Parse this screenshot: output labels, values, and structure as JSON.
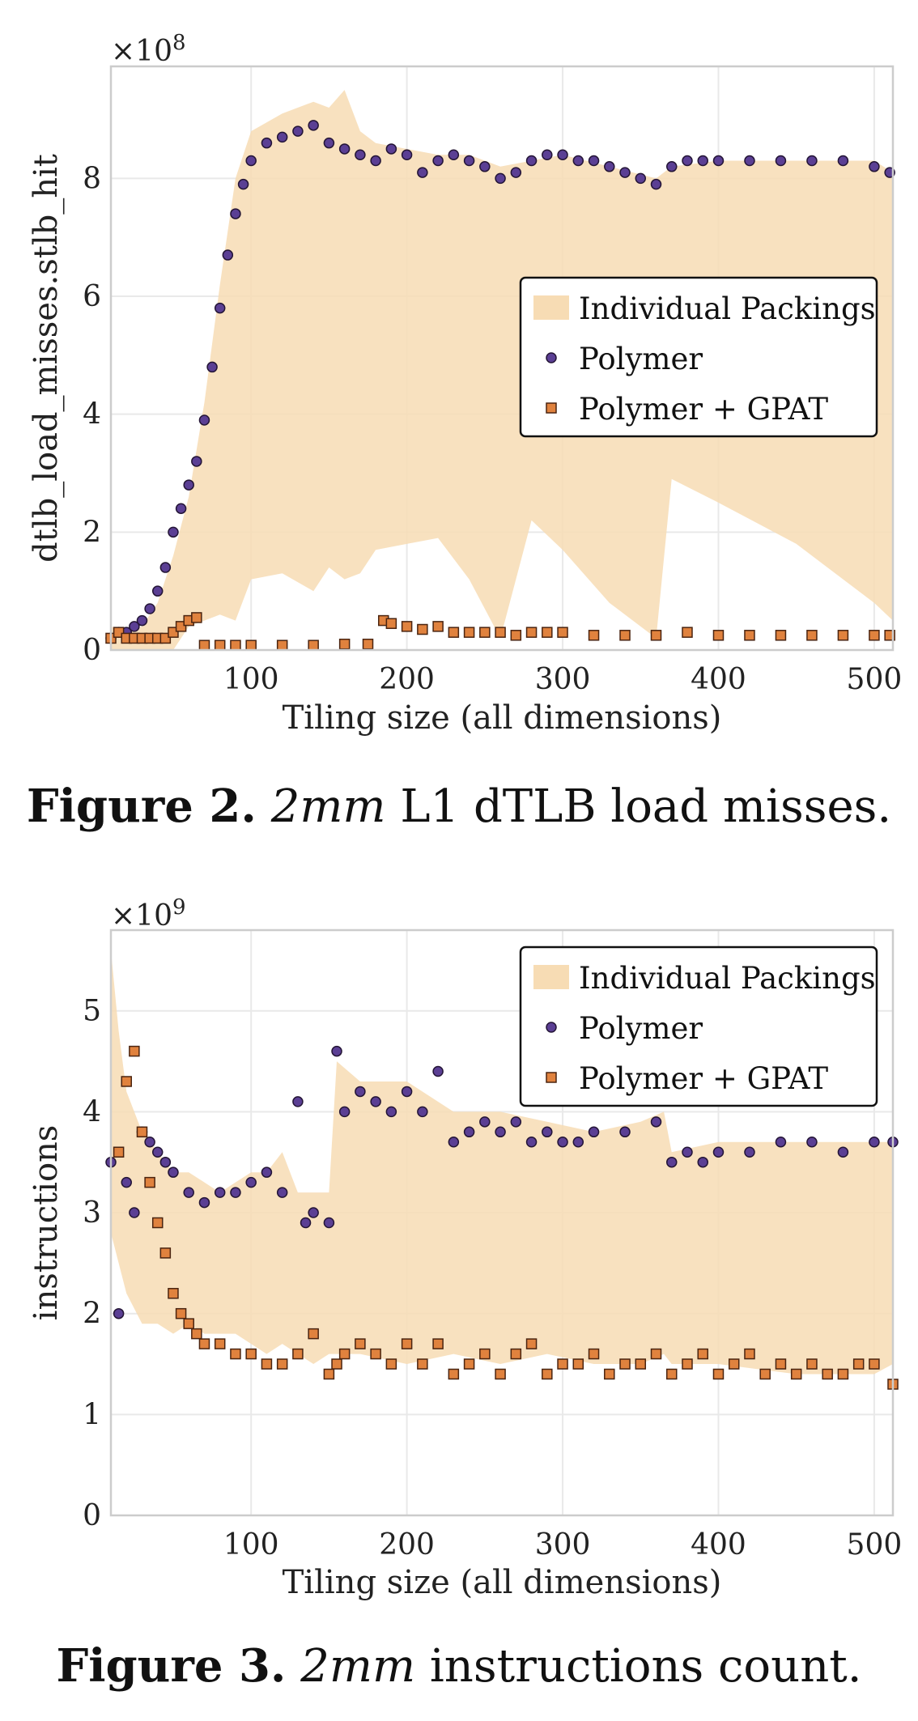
{
  "colors": {
    "band": "#f7dcb4",
    "polymer_fill": "#5b3f94",
    "polymer_edge": "#241536",
    "gpat_fill": "#e0823e",
    "gpat_edge": "#4a2410",
    "grid": "#e9e9e9",
    "frame": "#cccccc"
  },
  "captions": [
    {
      "num": "Figure 2.",
      "em": "2mm",
      "rest": " L1 dTLB load misses."
    },
    {
      "num": "Figure 3.",
      "em": "2mm",
      "rest": " instructions count."
    }
  ],
  "chart_data": [
    {
      "type": "scatter",
      "xlabel": "Tiling size (all dimensions)",
      "ylabel": "dtlb_load_misses.stlb_hit",
      "multiplier": "×10^8",
      "multiplier_base": "×10",
      "multiplier_exp": "8",
      "xlim": [
        10,
        512
      ],
      "ylim": [
        0,
        9.9
      ],
      "xticks": [
        100,
        200,
        300,
        400,
        500
      ],
      "yticks": [
        0,
        2,
        4,
        6,
        8
      ],
      "grid": true,
      "legend_position": "center-right",
      "legend": [
        "Individual Packings",
        "Polymer",
        "Polymer + GPAT"
      ],
      "series": [
        {
          "name": "Individual Packings",
          "kind": "band",
          "x": [
            10,
            20,
            30,
            40,
            50,
            60,
            70,
            80,
            90,
            100,
            120,
            140,
            150,
            160,
            170,
            180,
            200,
            220,
            240,
            260,
            280,
            300,
            330,
            360,
            370,
            400,
            450,
            500,
            512
          ],
          "upper": [
            0.4,
            0.3,
            0.4,
            0.8,
            1.6,
            2.6,
            4.2,
            6.2,
            8.0,
            8.8,
            9.1,
            9.3,
            9.2,
            9.5,
            8.8,
            8.6,
            8.5,
            8.4,
            8.4,
            8.2,
            8.3,
            8.4,
            8.2,
            8.0,
            8.2,
            8.3,
            8.3,
            8.3,
            8.1
          ],
          "lower": [
            0.0,
            0.0,
            0.0,
            0.0,
            0.0,
            0.4,
            0.5,
            0.6,
            0.5,
            1.2,
            1.3,
            1.0,
            1.4,
            1.2,
            1.3,
            1.7,
            1.8,
            1.9,
            1.2,
            0.2,
            2.2,
            1.7,
            0.8,
            0.2,
            2.9,
            2.5,
            1.8,
            0.8,
            0.5
          ]
        },
        {
          "name": "Polymer",
          "kind": "markers",
          "marker": "circle",
          "x": [
            10,
            15,
            20,
            25,
            30,
            35,
            40,
            45,
            50,
            55,
            60,
            65,
            70,
            75,
            80,
            85,
            90,
            95,
            100,
            110,
            120,
            130,
            140,
            150,
            160,
            170,
            180,
            190,
            200,
            210,
            220,
            230,
            240,
            250,
            260,
            270,
            280,
            290,
            300,
            310,
            320,
            330,
            340,
            350,
            360,
            370,
            380,
            390,
            400,
            420,
            440,
            460,
            480,
            500,
            510
          ],
          "y": [
            0.2,
            0.3,
            0.3,
            0.4,
            0.5,
            0.7,
            1.0,
            1.4,
            2.0,
            2.4,
            2.8,
            3.2,
            3.9,
            4.8,
            5.8,
            6.7,
            7.4,
            7.9,
            8.3,
            8.6,
            8.7,
            8.8,
            8.9,
            8.6,
            8.5,
            8.4,
            8.3,
            8.5,
            8.4,
            8.1,
            8.3,
            8.4,
            8.3,
            8.2,
            8.0,
            8.1,
            8.3,
            8.4,
            8.4,
            8.3,
            8.3,
            8.2,
            8.1,
            8.0,
            7.9,
            8.2,
            8.3,
            8.3,
            8.3,
            8.3,
            8.3,
            8.3,
            8.3,
            8.2,
            8.1
          ]
        },
        {
          "name": "Polymer + GPAT",
          "kind": "markers",
          "marker": "square",
          "x": [
            10,
            15,
            20,
            25,
            30,
            35,
            40,
            45,
            50,
            55,
            60,
            65,
            70,
            80,
            90,
            100,
            120,
            140,
            160,
            175,
            185,
            190,
            200,
            210,
            220,
            230,
            240,
            250,
            260,
            270,
            280,
            290,
            300,
            320,
            340,
            360,
            380,
            400,
            420,
            440,
            460,
            480,
            500,
            510
          ],
          "y": [
            0.2,
            0.3,
            0.2,
            0.2,
            0.2,
            0.2,
            0.2,
            0.2,
            0.3,
            0.4,
            0.5,
            0.55,
            0.08,
            0.08,
            0.08,
            0.08,
            0.08,
            0.08,
            0.1,
            0.1,
            0.5,
            0.45,
            0.4,
            0.35,
            0.4,
            0.3,
            0.3,
            0.3,
            0.3,
            0.25,
            0.3,
            0.3,
            0.3,
            0.25,
            0.25,
            0.25,
            0.3,
            0.25,
            0.25,
            0.25,
            0.25,
            0.25,
            0.25,
            0.25
          ]
        }
      ]
    },
    {
      "type": "scatter",
      "xlabel": "Tiling size (all dimensions)",
      "ylabel": "instructions",
      "multiplier": "×10^9",
      "multiplier_base": "×10",
      "multiplier_exp": "9",
      "xlim": [
        10,
        512
      ],
      "ylim": [
        0,
        5.8
      ],
      "xticks": [
        100,
        200,
        300,
        400,
        500
      ],
      "yticks": [
        0,
        1,
        2,
        3,
        4,
        5
      ],
      "grid": true,
      "legend_position": "top-right",
      "legend": [
        "Individual Packings",
        "Polymer",
        "Polymer + GPAT"
      ],
      "series": [
        {
          "name": "Individual Packings",
          "kind": "band",
          "x": [
            10,
            15,
            20,
            30,
            40,
            50,
            60,
            70,
            80,
            90,
            100,
            110,
            120,
            130,
            140,
            150,
            155,
            170,
            200,
            230,
            260,
            290,
            320,
            350,
            365,
            370,
            400,
            450,
            500,
            512
          ],
          "upper": [
            5.6,
            4.8,
            4.2,
            3.8,
            3.6,
            3.4,
            3.4,
            3.3,
            3.2,
            3.3,
            3.4,
            3.4,
            3.6,
            3.2,
            3.2,
            3.2,
            4.5,
            4.3,
            4.3,
            4.0,
            4.0,
            3.9,
            3.8,
            3.9,
            4.0,
            3.6,
            3.7,
            3.7,
            3.7,
            3.7
          ],
          "lower": [
            2.8,
            2.5,
            2.2,
            1.9,
            1.9,
            1.8,
            1.9,
            1.8,
            1.8,
            1.8,
            1.7,
            1.6,
            1.7,
            1.6,
            1.5,
            1.6,
            1.6,
            1.6,
            1.5,
            1.6,
            1.5,
            1.6,
            1.5,
            1.5,
            1.6,
            1.5,
            1.5,
            1.4,
            1.4,
            1.5
          ]
        },
        {
          "name": "Polymer",
          "kind": "markers",
          "marker": "circle",
          "x": [
            10,
            15,
            20,
            25,
            30,
            35,
            40,
            45,
            50,
            60,
            70,
            80,
            90,
            100,
            110,
            120,
            130,
            135,
            140,
            150,
            155,
            160,
            170,
            180,
            190,
            200,
            210,
            220,
            230,
            240,
            250,
            260,
            270,
            280,
            290,
            300,
            310,
            320,
            340,
            360,
            370,
            380,
            390,
            400,
            420,
            440,
            460,
            480,
            500,
            512
          ],
          "y": [
            3.5,
            2.0,
            3.3,
            3.0,
            3.8,
            3.7,
            3.6,
            3.5,
            3.4,
            3.2,
            3.1,
            3.2,
            3.2,
            3.3,
            3.4,
            3.2,
            4.1,
            2.9,
            3.0,
            2.9,
            4.6,
            4.0,
            4.2,
            4.1,
            4.0,
            4.2,
            4.0,
            4.4,
            3.7,
            3.8,
            3.9,
            3.8,
            3.9,
            3.7,
            3.8,
            3.7,
            3.7,
            3.8,
            3.8,
            3.9,
            3.5,
            3.6,
            3.5,
            3.6,
            3.6,
            3.7,
            3.7,
            3.6,
            3.7,
            3.7
          ]
        },
        {
          "name": "Polymer + GPAT",
          "kind": "markers",
          "marker": "square",
          "x": [
            15,
            20,
            25,
            30,
            35,
            40,
            45,
            50,
            55,
            60,
            65,
            70,
            80,
            90,
            100,
            110,
            120,
            130,
            140,
            150,
            155,
            160,
            170,
            180,
            190,
            200,
            210,
            220,
            230,
            240,
            250,
            260,
            270,
            280,
            290,
            300,
            310,
            320,
            330,
            340,
            350,
            360,
            370,
            380,
            390,
            400,
            410,
            420,
            430,
            440,
            450,
            460,
            470,
            480,
            490,
            500,
            512
          ],
          "y": [
            3.6,
            4.3,
            4.6,
            3.8,
            3.3,
            2.9,
            2.6,
            2.2,
            2.0,
            1.9,
            1.8,
            1.7,
            1.7,
            1.6,
            1.6,
            1.5,
            1.5,
            1.6,
            1.8,
            1.4,
            1.5,
            1.6,
            1.7,
            1.6,
            1.5,
            1.7,
            1.5,
            1.7,
            1.4,
            1.5,
            1.6,
            1.4,
            1.6,
            1.7,
            1.4,
            1.5,
            1.5,
            1.6,
            1.4,
            1.5,
            1.5,
            1.6,
            1.4,
            1.5,
            1.6,
            1.4,
            1.5,
            1.6,
            1.4,
            1.5,
            1.4,
            1.5,
            1.4,
            1.4,
            1.5,
            1.5,
            1.3
          ]
        }
      ]
    }
  ]
}
